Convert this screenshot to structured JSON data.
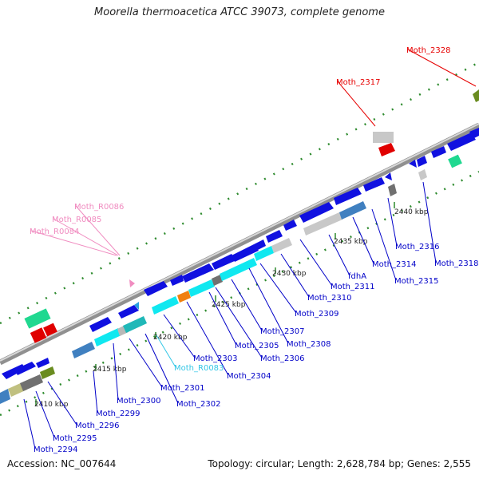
{
  "title": "Moorella thermoacetica ATCC 39073, complete genome",
  "accession": "Accession: NC_007644",
  "topology": "Topology: circular; Length: 2,628,784 bp; Genes: 2,555",
  "ticks": [
    "2410 kbp",
    "2415 kbp",
    "2420 kbp",
    "2425 kbp",
    "2430 kbp",
    "2435 kbp",
    "2440 kbp"
  ],
  "gene_labels": [
    {
      "text": "Moth_2294",
      "color": "#0000c8"
    },
    {
      "text": "Moth_2295",
      "color": "#0000c8"
    },
    {
      "text": "Moth_2296",
      "color": "#0000c8"
    },
    {
      "text": "Moth_2299",
      "color": "#0000c8"
    },
    {
      "text": "Moth_2300",
      "color": "#0000c8"
    },
    {
      "text": "Moth_2301",
      "color": "#0000c8"
    },
    {
      "text": "Moth_2302",
      "color": "#0000c8"
    },
    {
      "text": "Moth_R0083",
      "color": "#33c7e6"
    },
    {
      "text": "Moth_2303",
      "color": "#0000c8"
    },
    {
      "text": "Moth_2304",
      "color": "#0000c8"
    },
    {
      "text": "Moth_2305",
      "color": "#0000c8"
    },
    {
      "text": "Moth_2306",
      "color": "#0000c8"
    },
    {
      "text": "Moth_2307",
      "color": "#0000c8"
    },
    {
      "text": "Moth_2308",
      "color": "#0000c8"
    },
    {
      "text": "Moth_2309",
      "color": "#0000c8"
    },
    {
      "text": "Moth_2310",
      "color": "#0000c8"
    },
    {
      "text": "Moth_2311",
      "color": "#0000c8"
    },
    {
      "text": "fdhA",
      "color": "#0000c8"
    },
    {
      "text": "Moth_2314",
      "color": "#0000c8"
    },
    {
      "text": "Moth_2315",
      "color": "#0000c8"
    },
    {
      "text": "Moth_2316",
      "color": "#0000c8"
    },
    {
      "text": "Moth_2318",
      "color": "#0000c8"
    },
    {
      "text": "Moth_2317",
      "color": "#e60000"
    },
    {
      "text": "Moth_2328",
      "color": "#e60000"
    },
    {
      "text": "Moth_R0084",
      "color": "#f08cc0"
    },
    {
      "text": "Moth_R0085",
      "color": "#f08cc0"
    },
    {
      "text": "Moth_R0086",
      "color": "#f08cc0"
    }
  ]
}
